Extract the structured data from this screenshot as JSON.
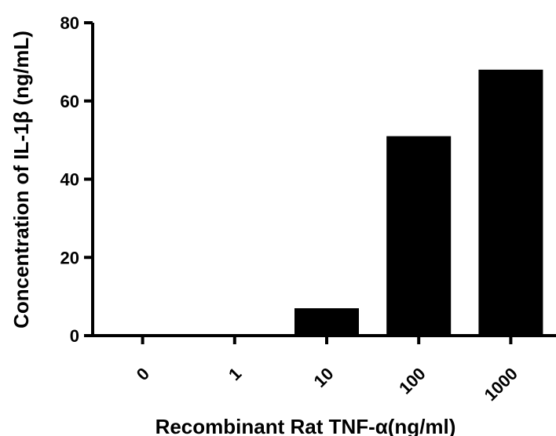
{
  "chart_data": {
    "type": "bar",
    "categories": [
      "0",
      "1",
      "10",
      "100",
      "1000"
    ],
    "values": [
      0.3,
      0.3,
      7,
      51,
      68
    ],
    "xlabel": "Recombinant Rat TNF-α(ng/ml)",
    "ylabel": "Concentration of IL-1β (ng/mL)",
    "ylim": [
      0,
      80
    ],
    "yticks": [
      "0",
      "20",
      "40",
      "60",
      "80"
    ],
    "grid": false,
    "bar_color": "#000000"
  }
}
